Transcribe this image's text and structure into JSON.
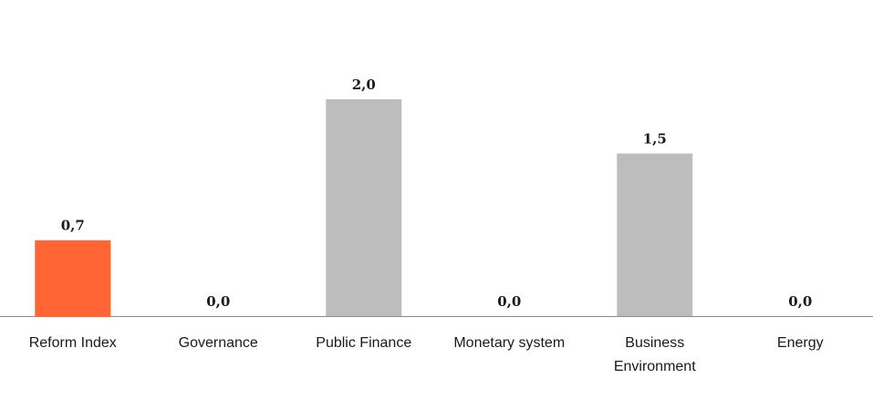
{
  "chart_data": {
    "type": "bar",
    "categories": [
      [
        "Reform Index"
      ],
      [
        "Governance"
      ],
      [
        "Public Finance"
      ],
      [
        "Monetary system"
      ],
      [
        "Business",
        "Environment"
      ],
      [
        "Energy"
      ]
    ],
    "values": [
      0.7,
      0.0,
      2.0,
      0.0,
      1.5,
      0.0
    ],
    "value_labels": [
      "0,7",
      "0,0",
      "2,0",
      "0,0",
      "1,5",
      "0,0"
    ],
    "ylim": [
      0,
      2.0
    ],
    "grid": false,
    "colors": {
      "highlight": "#FF6633",
      "default": "#BDBDBD",
      "axis": "#8c8c8c"
    },
    "highlight_index": 0
  }
}
